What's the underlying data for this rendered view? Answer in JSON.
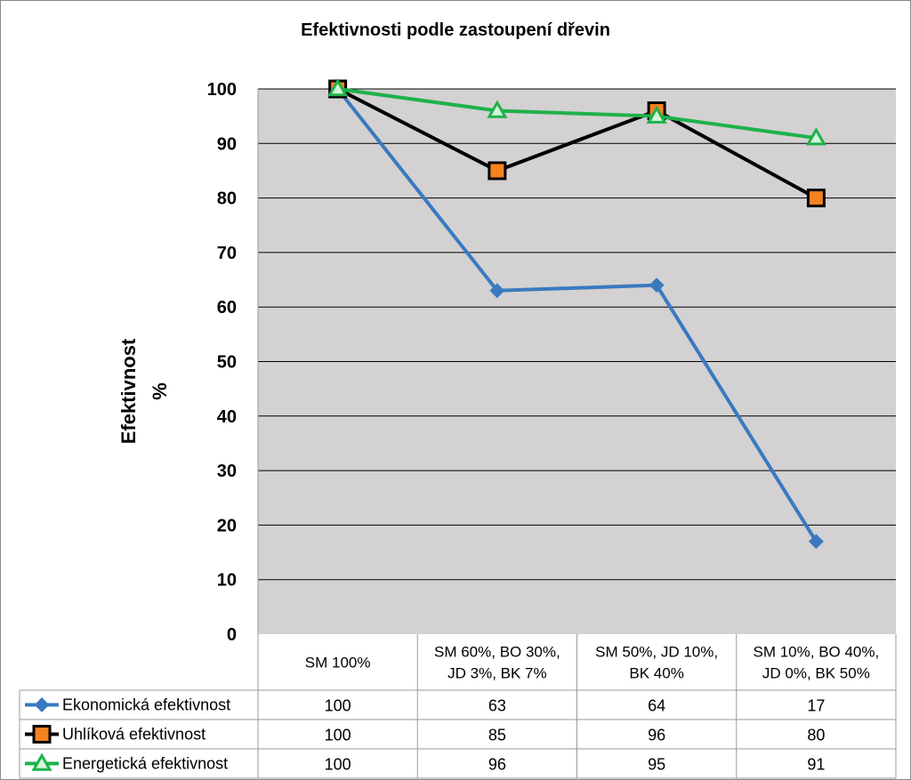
{
  "chart_data": {
    "type": "line",
    "title": "Efektivnosti podle zastoupení dřevin",
    "ylabel_line1": "Efektivnost",
    "ylabel_line2": "%",
    "xlabel": "",
    "ylim": [
      0,
      100
    ],
    "yticks": [
      "0",
      "10",
      "20",
      "30",
      "40",
      "50",
      "60",
      "70",
      "80",
      "90",
      "100"
    ],
    "grid": true,
    "legend": "data-table",
    "categories": [
      [
        "SM 100%"
      ],
      [
        "SM 60%, BO 30%,",
        "JD 3%, BK 7%"
      ],
      [
        "SM 50%,  JD 10%,",
        "BK 40%"
      ],
      [
        "SM 10%, BO 40%,",
        "JD 0%, BK 50%"
      ]
    ],
    "series": [
      {
        "name": "Ekonomická efektivnost",
        "values": [
          100,
          63,
          64,
          17
        ],
        "color": "#3a79c0",
        "marker": "diamond",
        "marker_fill": "#3a79c0"
      },
      {
        "name": "Uhlíková efektivnost",
        "values": [
          100,
          85,
          96,
          80
        ],
        "color": "#000000",
        "marker": "square",
        "marker_fill": "#f58220"
      },
      {
        "name": "Energetická efektivnost",
        "values": [
          100,
          96,
          95,
          91
        ],
        "color": "#1fb14b",
        "marker": "triangle",
        "marker_fill": "#1fb14b"
      }
    ],
    "plot_background": "#d3d1d2"
  }
}
